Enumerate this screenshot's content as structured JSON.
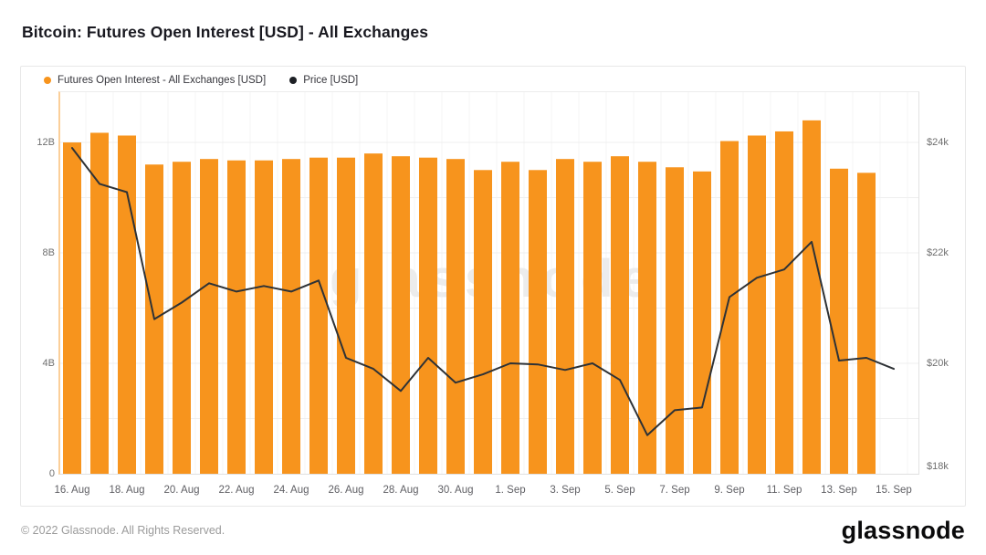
{
  "title": "Bitcoin: Futures Open Interest [USD] - All Exchanges",
  "watermark": "glassnode",
  "legend": {
    "items": [
      {
        "label": "Futures Open Interest - All Exchanges [USD]",
        "color": "#f7941d"
      },
      {
        "label": "Price [USD]",
        "color": "#1d2025"
      }
    ]
  },
  "footer": {
    "copyright": "© 2022 Glassnode. All Rights Reserved.",
    "logo": "glassnode"
  },
  "chart_data": {
    "type": "bar+line combo, dual y-axes",
    "grid": true,
    "legend_position": "top-left",
    "categories": [
      "16. Aug",
      "17. Aug",
      "18. Aug",
      "19. Aug",
      "20. Aug",
      "21. Aug",
      "22. Aug",
      "23. Aug",
      "24. Aug",
      "25. Aug",
      "26. Aug",
      "27. Aug",
      "28. Aug",
      "29. Aug",
      "30. Aug",
      "31. Aug",
      "1. Sep",
      "2. Sep",
      "3. Sep",
      "4. Sep",
      "5. Sep",
      "6. Sep",
      "7. Sep",
      "8. Sep",
      "9. Sep",
      "10. Sep",
      "11. Sep",
      "12. Sep",
      "13. Sep",
      "14. Sep",
      "15. Sep"
    ],
    "series": [
      {
        "name": "Futures Open Interest - All Exchanges [USD]",
        "type": "bar",
        "axis": "left",
        "unit": "billion USD",
        "color": "#f7941d",
        "values": [
          12.0,
          12.35,
          12.25,
          11.2,
          11.3,
          11.4,
          11.35,
          11.35,
          11.4,
          11.45,
          11.45,
          11.6,
          11.5,
          11.45,
          11.4,
          11.0,
          11.3,
          11.0,
          11.4,
          11.3,
          11.5,
          11.3,
          11.1,
          10.95,
          12.05,
          12.25,
          12.4,
          12.8,
          11.05,
          10.9,
          null
        ]
      },
      {
        "name": "Price [USD]",
        "type": "line",
        "axis": "right",
        "unit": "USD",
        "color": "#2e3236",
        "values": [
          23900,
          23250,
          23100,
          20800,
          21100,
          21450,
          21300,
          21400,
          21300,
          21500,
          20100,
          19900,
          19500,
          20100,
          19650,
          19800,
          20000,
          19980,
          19880,
          20000,
          19700,
          18700,
          19150,
          19200,
          21200,
          21550,
          21700,
          22200,
          20050,
          20100,
          19900
        ]
      }
    ],
    "left_axis": {
      "ticks": [
        {
          "value": 0,
          "label": "0"
        },
        {
          "value": 4,
          "label": "4B"
        },
        {
          "value": 8,
          "label": "8B"
        },
        {
          "value": 12,
          "label": "12B"
        }
      ],
      "range": [
        0,
        13.82
      ],
      "gridline_step": 2
    },
    "right_axis": {
      "ticks": [
        {
          "value": 18000,
          "label": "$18k"
        },
        {
          "value": 20000,
          "label": "$20k"
        },
        {
          "value": 22000,
          "label": "$22k"
        },
        {
          "value": 24000,
          "label": "$24k"
        }
      ],
      "range": [
        18000,
        24910
      ]
    },
    "x_ticks": [
      "16. Aug",
      "18. Aug",
      "20. Aug",
      "22. Aug",
      "24. Aug",
      "26. Aug",
      "28. Aug",
      "30. Aug",
      "1. Sep",
      "3. Sep",
      "5. Sep",
      "7. Sep",
      "9. Sep",
      "11. Sep",
      "13. Sep",
      "15. Sep"
    ]
  }
}
